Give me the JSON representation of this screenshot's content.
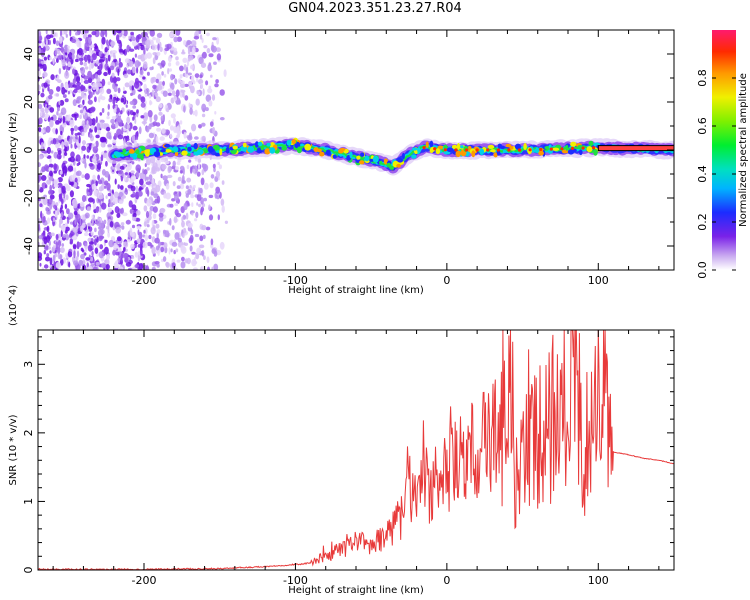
{
  "title": "GN04.2023.351.23.27.R04",
  "chart_data": [
    {
      "type": "heatmap",
      "xlabel": "Height of straight line (km)",
      "ylabel": "Frequency (Hz)",
      "xlim": [
        -270,
        150
      ],
      "ylim": [
        -50,
        50
      ],
      "xticks": [
        "-200",
        "-100",
        "0",
        "100"
      ],
      "xtick_values": [
        -200,
        -100,
        0,
        100
      ],
      "yticks": [
        "-40",
        "-20",
        "0",
        "20",
        "40"
      ],
      "ytick_values": [
        -40,
        -20,
        0,
        20,
        40
      ],
      "colorbar": {
        "label": "Normalized spectral amplitude",
        "ticks": [
          "0.0",
          "0.2",
          "0.4",
          "0.6",
          "0.8"
        ],
        "tick_values": [
          0.0,
          0.2,
          0.4,
          0.6,
          0.8
        ],
        "range": [
          0,
          1
        ]
      },
      "ridge": {
        "x": [
          -220,
          -200,
          -180,
          -150,
          -120,
          -100,
          -80,
          -60,
          -45,
          -35,
          -25,
          -15,
          0,
          50,
          100,
          150
        ],
        "y": [
          -2,
          -1,
          0,
          0,
          1,
          2,
          0,
          -3,
          -5,
          -7,
          -2,
          1,
          0,
          0,
          1,
          0
        ]
      }
    },
    {
      "type": "line",
      "xlabel": "Height of straight line (km)",
      "ylabel": "SNR (10 * v/v)",
      "y_multiplier": "(x10^4)",
      "xlim": [
        -270,
        150
      ],
      "ylim": [
        0,
        3.5
      ],
      "xticks": [
        "-200",
        "-100",
        "0",
        "100"
      ],
      "xtick_values": [
        -200,
        -100,
        0,
        100
      ],
      "yticks": [
        "0",
        "1",
        "2",
        "3"
      ],
      "ytick_values": [
        0,
        1,
        2,
        3
      ],
      "color": "#e83a3a",
      "series": [
        {
          "x": [
            -270,
            -200,
            -150,
            -120,
            -100,
            -90,
            -80,
            -70,
            -60,
            -50,
            -40,
            -30,
            -25,
            -20,
            -15,
            -10,
            0,
            10,
            20,
            30,
            40,
            42,
            45,
            50,
            60,
            70,
            80,
            85,
            90,
            95,
            100,
            105,
            110,
            120,
            130,
            140,
            150
          ],
          "y": [
            0.01,
            0.01,
            0.02,
            0.05,
            0.08,
            0.1,
            0.2,
            0.3,
            0.4,
            0.35,
            0.5,
            0.8,
            1.2,
            1.0,
            1.3,
            1.2,
            1.4,
            1.6,
            1.8,
            1.9,
            2.0,
            3.45,
            1.2,
            2.2,
            1.9,
            2.1,
            2.0,
            3.2,
            1.5,
            2.3,
            3.1,
            2.4,
            1.72,
            1.68,
            1.63,
            1.6,
            1.55
          ]
        }
      ]
    }
  ]
}
